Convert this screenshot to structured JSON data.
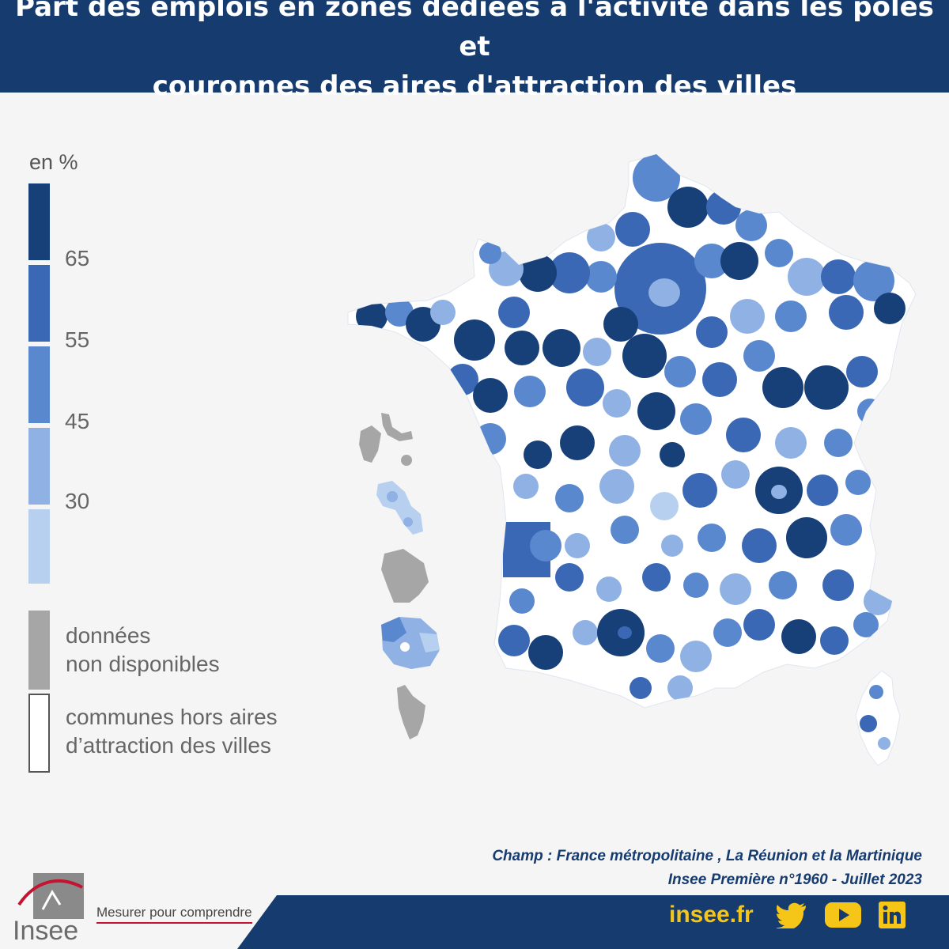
{
  "header": {
    "title_line1": "Part des emplois en zones dédiées à l'activité dans les pôles et",
    "title_line2": "couronnes des aires d'attraction des villes"
  },
  "legend": {
    "unit": "en %",
    "classes": [
      {
        "color": "#173f78",
        "label": "65"
      },
      {
        "color": "#3b68b5",
        "label": "55"
      },
      {
        "color": "#5a88cf",
        "label": "45"
      },
      {
        "color": "#8fb1e3",
        "label": "30"
      },
      {
        "color": "#b7d0f0",
        "label": ""
      }
    ],
    "no_data": {
      "color": "#a6a6a6",
      "line1": "données",
      "line2": "non disponibles"
    },
    "outside": {
      "color": "#ffffff",
      "line1": "communes hors aires",
      "line2": "d’attraction des villes"
    }
  },
  "source": {
    "line1": "Champ : France métropolitaine , La Réunion et la Martinique",
    "line2": "Insee Première n°1960 - Juillet 2023"
  },
  "footer": {
    "site": "insee.fr",
    "social": [
      "twitter-icon",
      "youtube-icon",
      "linkedin-icon"
    ],
    "logo_text": "Insee",
    "tagline": "Mesurer pour comprendre",
    "bar_color": "#153b6f",
    "accent_color": "#f5c518"
  }
}
